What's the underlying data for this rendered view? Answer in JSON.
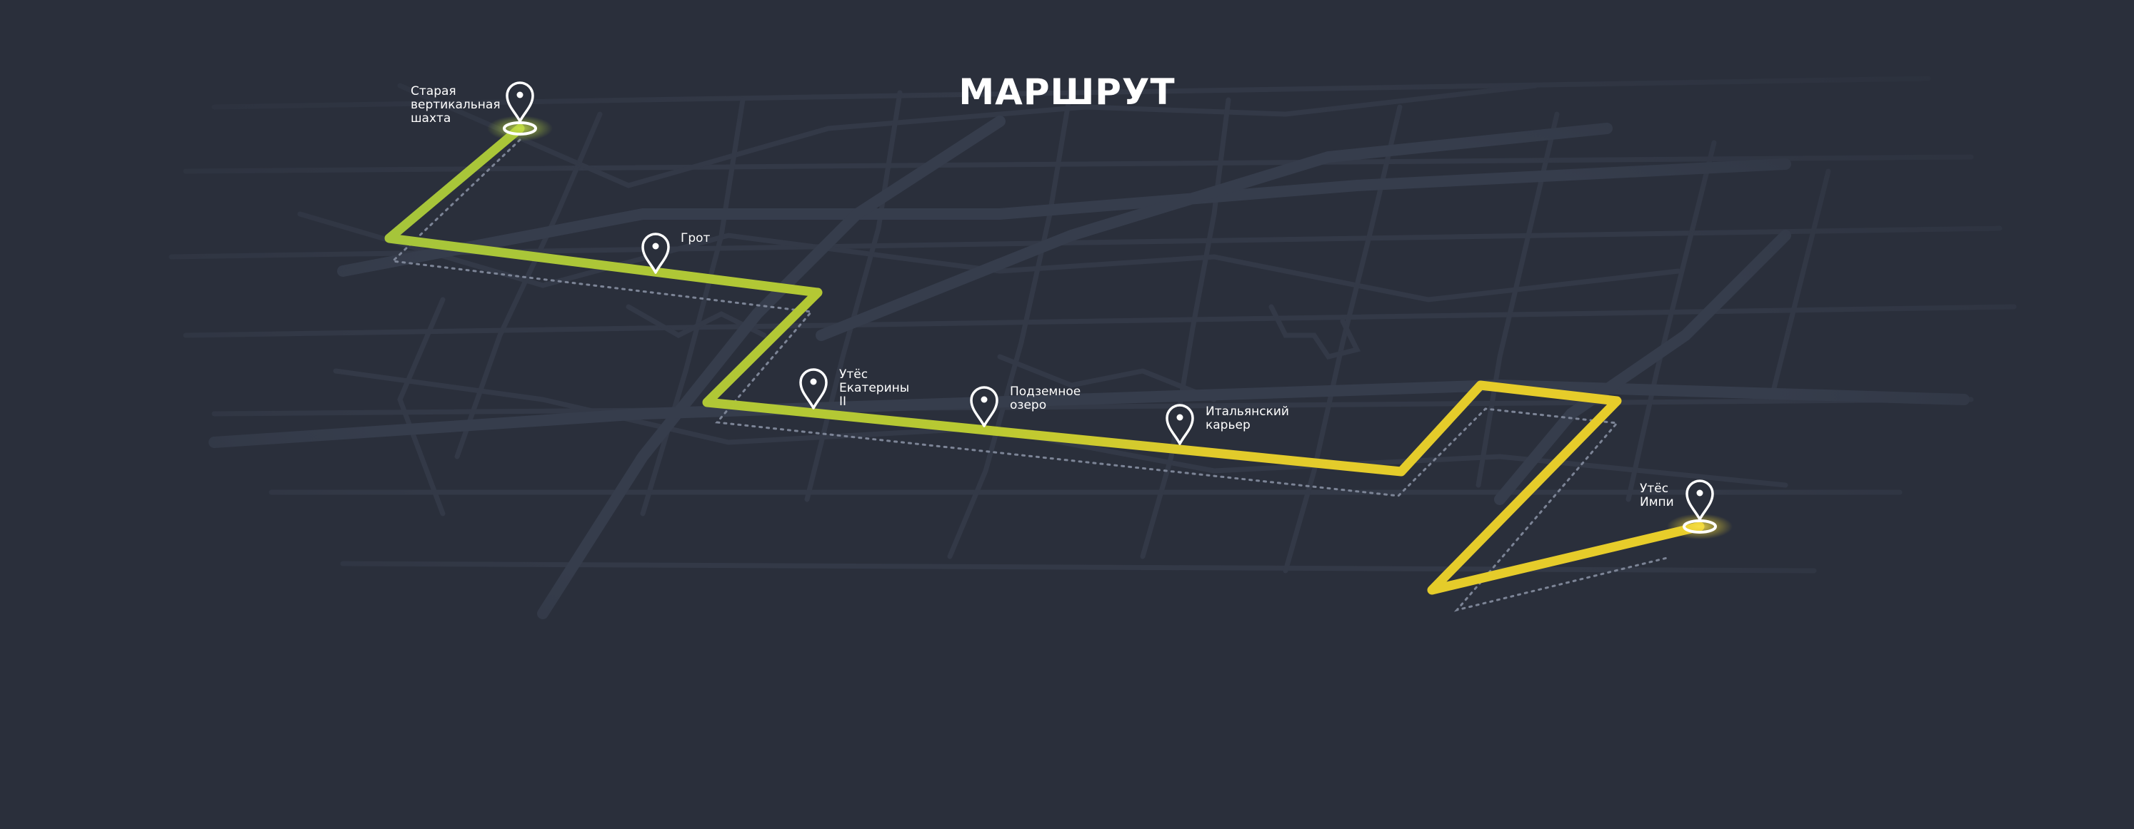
{
  "title": "МАРШРУТ",
  "colors": {
    "background": "#2a2f3b",
    "road": "#333947",
    "road_major": "#363d4c",
    "route_start": "#a6c53a",
    "route_end": "#e8cd2a",
    "shadow": "#7c8496",
    "pin": "#ffffff"
  },
  "points": [
    {
      "id": "start",
      "lines": [
        "Старая",
        "вертикальная",
        "шахта"
      ],
      "icon": "map-pin-icon"
    },
    {
      "id": "grot",
      "lines": [
        "Грот"
      ],
      "icon": "map-pin-icon"
    },
    {
      "id": "utes-ekateriny",
      "lines": [
        "Утёс",
        "Екатерины",
        "II"
      ],
      "icon": "map-pin-icon"
    },
    {
      "id": "podzemnoe-ozero",
      "lines": [
        "Подземное",
        "озеро"
      ],
      "icon": "map-pin-icon"
    },
    {
      "id": "italyansky-karer",
      "lines": [
        "Итальянский",
        "карьер"
      ],
      "icon": "map-pin-icon"
    },
    {
      "id": "utes-impi",
      "lines": [
        "Утёс",
        "Импи"
      ],
      "icon": "map-pin-icon"
    }
  ]
}
